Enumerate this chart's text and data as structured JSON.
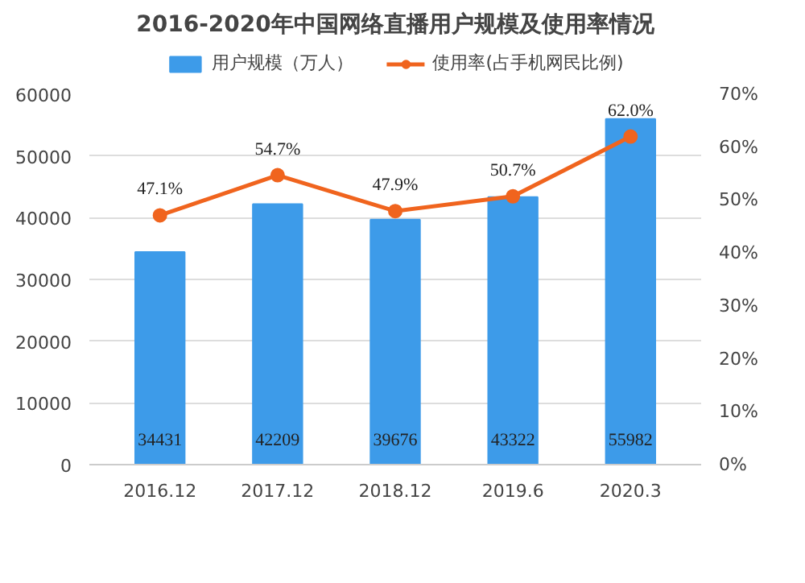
{
  "chart_data": {
    "type": "bar",
    "title": "2016-2020年中国网络直播用户规模及使用率情况",
    "categories": [
      "2016.12",
      "2017.12",
      "2018.12",
      "2019.6",
      "2020.3"
    ],
    "series": [
      {
        "name": "用户规模（万人）",
        "color": "#3d9be9",
        "values": [
          34431,
          42209,
          39676,
          43322,
          55982
        ],
        "value_labels": [
          "34431",
          "42209",
          "39676",
          "43322",
          "55982"
        ]
      },
      {
        "name": "使用率(占手机网民比例)",
        "type": "line",
        "axis": "y2",
        "color": "#f0641e",
        "marker": "circle",
        "values": [
          47.1,
          54.7,
          47.9,
          50.7,
          62.0
        ],
        "value_labels": [
          "47.1%",
          "54.7%",
          "47.9%",
          "50.7%",
          "62.0%"
        ]
      }
    ],
    "ylim": [
      0,
      60000
    ],
    "yticks": [
      0,
      10000,
      20000,
      30000,
      40000,
      50000,
      60000
    ],
    "y2lim": [
      0,
      70
    ],
    "y2ticks": [
      {
        "value": 0,
        "label": "0%"
      },
      {
        "value": 10,
        "label": "10%"
      },
      {
        "value": 20,
        "label": "20%"
      },
      {
        "value": 30,
        "label": "30%"
      },
      {
        "value": 40,
        "label": "40%"
      },
      {
        "value": 50,
        "label": "50%"
      },
      {
        "value": 60,
        "label": "60%"
      },
      {
        "value": 70,
        "label": "70%"
      }
    ],
    "grid": "y",
    "legend": "top"
  }
}
